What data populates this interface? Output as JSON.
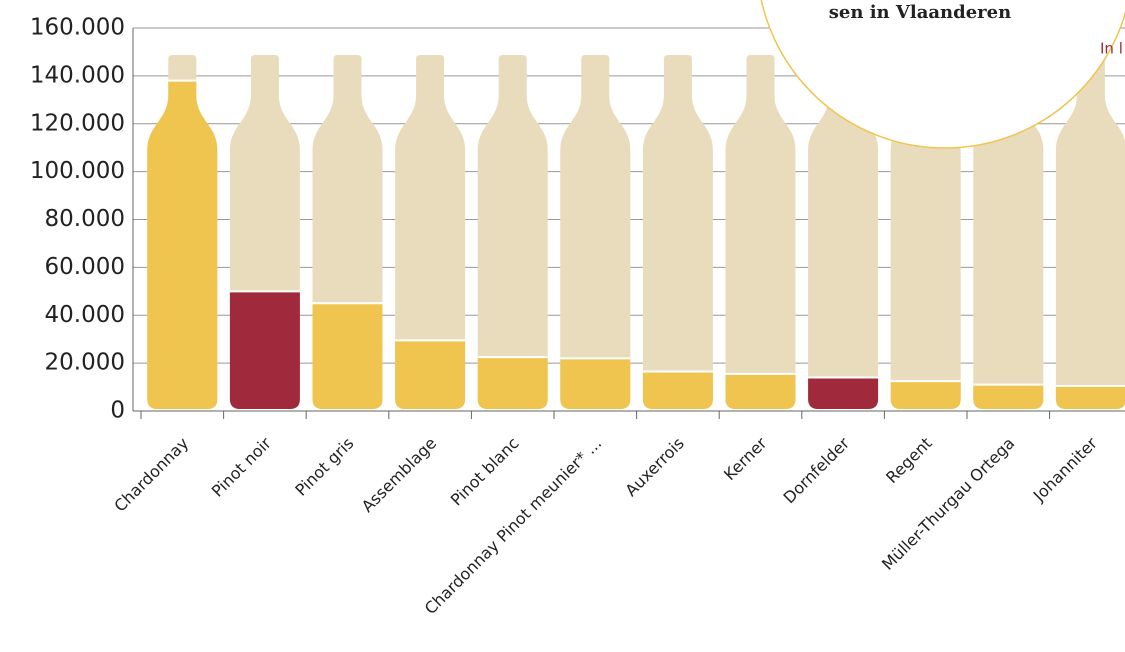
{
  "chart_data": {
    "type": "bar",
    "annotations": [
      "sen in Vlaanderen",
      "In l"
    ],
    "categories": [
      "Chardonnay",
      "Pinot noir",
      "Pinot gris",
      "Assemblage",
      "Pinot blanc",
      "Chardonnay Pinot meunier* ...",
      "Auxerrois",
      "Kerner",
      "Dornfelder",
      "Regent",
      "Müller-Thurgau Ortega",
      "Johanniter"
    ],
    "values": [
      138000,
      50000,
      45000,
      29500,
      22500,
      22000,
      16500,
      15500,
      14000,
      12500,
      11000,
      10500
    ],
    "colors": [
      "#efc54f",
      "#a0293b",
      "#efc54f",
      "#efc54f",
      "#efc54f",
      "#efc54f",
      "#efc54f",
      "#efc54f",
      "#a0293b",
      "#efc54f",
      "#efc54f",
      "#efc54f"
    ],
    "ylim": [
      0,
      160000
    ],
    "yticks": [
      0,
      {
        "value": 20000,
        "label": "20.000"
      },
      {
        "value": 40000,
        "label": "40.000"
      },
      {
        "value": 60000,
        "label": "60.000"
      },
      {
        "value": 80000,
        "label": "80.000"
      },
      {
        "value": 100000,
        "label": "100.000"
      },
      {
        "value": 120000,
        "label": "120.000"
      },
      {
        "value": 140000,
        "label": "140.000"
      },
      {
        "value": 160000,
        "label": "160.000"
      }
    ],
    "grid": true
  }
}
